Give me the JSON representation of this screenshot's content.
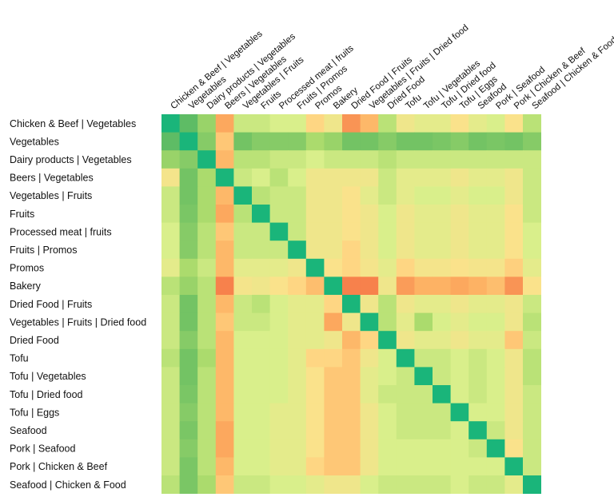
{
  "chart_data": {
    "type": "heatmap",
    "title": "",
    "xlabel": "",
    "ylabel": "",
    "categories": [
      "Chicken & Beef | Vegetables",
      "Vegetables",
      "Dairy products | Vegetables",
      "Beers | Vegetables",
      "Vegetables | Fruits",
      "Fruits",
      "Processed meat | fruits",
      "Fruits | Promos",
      "Promos",
      "Bakery",
      "Dried Food | Fruits",
      "Vegetables | Fruits | Dried food",
      "Dried Food",
      "Tofu",
      "Tofu | Vegetables",
      "Tofu | Dried food",
      "Tofu | Eggs",
      "Seafood",
      "Pork | Seafood",
      "Pork | Chicken & Beef",
      "Seafood | Chicken & Food"
    ],
    "legend": "none",
    "grid": false,
    "value_range": [
      0,
      1
    ],
    "colorscale": [
      "#f46d43",
      "#fdae61",
      "#fee08b",
      "#d9ef8b",
      "#a6d96a",
      "#66bd63",
      "#1ab57a"
    ],
    "values": [
      [
        1.0,
        0.85,
        0.7,
        0.15,
        0.55,
        0.55,
        0.5,
        0.5,
        0.3,
        0.4,
        0.1,
        0.2,
        0.6,
        0.4,
        0.45,
        0.45,
        0.35,
        0.45,
        0.5,
        0.35,
        0.6
      ],
      [
        0.85,
        1.0,
        0.75,
        0.25,
        0.8,
        0.75,
        0.75,
        0.75,
        0.65,
        0.7,
        0.8,
        0.8,
        0.75,
        0.8,
        0.8,
        0.78,
        0.75,
        0.8,
        0.78,
        0.8,
        0.75
      ],
      [
        0.7,
        0.75,
        1.0,
        0.2,
        0.6,
        0.6,
        0.55,
        0.55,
        0.5,
        0.55,
        0.55,
        0.55,
        0.6,
        0.55,
        0.55,
        0.55,
        0.55,
        0.55,
        0.55,
        0.55,
        0.55
      ],
      [
        0.38,
        0.8,
        0.65,
        1.0,
        0.55,
        0.5,
        0.6,
        0.5,
        0.4,
        0.4,
        0.4,
        0.4,
        0.55,
        0.45,
        0.45,
        0.45,
        0.4,
        0.45,
        0.45,
        0.4,
        0.55
      ],
      [
        0.55,
        0.8,
        0.65,
        0.2,
        1.0,
        0.6,
        0.55,
        0.55,
        0.4,
        0.4,
        0.35,
        0.45,
        0.55,
        0.45,
        0.5,
        0.5,
        0.45,
        0.5,
        0.5,
        0.4,
        0.55
      ],
      [
        0.55,
        0.78,
        0.65,
        0.15,
        0.6,
        1.0,
        0.55,
        0.55,
        0.4,
        0.4,
        0.35,
        0.4,
        0.5,
        0.4,
        0.45,
        0.45,
        0.4,
        0.45,
        0.45,
        0.35,
        0.55
      ],
      [
        0.5,
        0.75,
        0.6,
        0.25,
        0.55,
        0.55,
        1.0,
        0.55,
        0.4,
        0.4,
        0.35,
        0.4,
        0.5,
        0.4,
        0.45,
        0.45,
        0.4,
        0.45,
        0.45,
        0.35,
        0.5
      ],
      [
        0.5,
        0.75,
        0.6,
        0.2,
        0.55,
        0.55,
        0.55,
        1.0,
        0.4,
        0.4,
        0.3,
        0.4,
        0.5,
        0.4,
        0.45,
        0.45,
        0.4,
        0.45,
        0.45,
        0.35,
        0.5
      ],
      [
        0.45,
        0.65,
        0.55,
        0.2,
        0.45,
        0.45,
        0.45,
        0.4,
        1.0,
        0.35,
        0.3,
        0.38,
        0.45,
        0.3,
        0.38,
        0.38,
        0.35,
        0.38,
        0.38,
        0.28,
        0.45
      ],
      [
        0.6,
        0.7,
        0.6,
        0.05,
        0.38,
        0.4,
        0.35,
        0.3,
        0.22,
        1.0,
        0.05,
        0.05,
        0.4,
        0.12,
        0.18,
        0.18,
        0.15,
        0.18,
        0.22,
        0.1,
        0.35
      ],
      [
        0.55,
        0.8,
        0.6,
        0.2,
        0.55,
        0.6,
        0.5,
        0.45,
        0.45,
        0.3,
        1.0,
        0.4,
        0.6,
        0.4,
        0.45,
        0.45,
        0.4,
        0.45,
        0.45,
        0.4,
        0.55
      ],
      [
        0.55,
        0.8,
        0.6,
        0.25,
        0.55,
        0.55,
        0.5,
        0.45,
        0.45,
        0.15,
        0.4,
        1.0,
        0.6,
        0.45,
        0.65,
        0.5,
        0.45,
        0.5,
        0.5,
        0.4,
        0.6
      ],
      [
        0.55,
        0.75,
        0.6,
        0.2,
        0.5,
        0.5,
        0.5,
        0.45,
        0.45,
        0.4,
        0.2,
        0.3,
        1.0,
        0.4,
        0.45,
        0.45,
        0.4,
        0.45,
        0.45,
        0.25,
        0.55
      ],
      [
        0.6,
        0.8,
        0.65,
        0.2,
        0.5,
        0.5,
        0.5,
        0.45,
        0.3,
        0.3,
        0.25,
        0.4,
        0.5,
        1.0,
        0.55,
        0.55,
        0.5,
        0.55,
        0.5,
        0.4,
        0.6
      ],
      [
        0.55,
        0.8,
        0.6,
        0.2,
        0.5,
        0.5,
        0.5,
        0.45,
        0.35,
        0.25,
        0.25,
        0.45,
        0.5,
        0.55,
        1.0,
        0.55,
        0.5,
        0.55,
        0.5,
        0.4,
        0.6
      ],
      [
        0.55,
        0.78,
        0.6,
        0.2,
        0.5,
        0.5,
        0.5,
        0.45,
        0.35,
        0.25,
        0.25,
        0.45,
        0.55,
        0.55,
        0.55,
        1.0,
        0.5,
        0.55,
        0.5,
        0.4,
        0.55
      ],
      [
        0.55,
        0.75,
        0.6,
        0.2,
        0.5,
        0.5,
        0.45,
        0.45,
        0.35,
        0.25,
        0.25,
        0.4,
        0.5,
        0.55,
        0.55,
        0.55,
        1.0,
        0.5,
        0.5,
        0.4,
        0.55
      ],
      [
        0.55,
        0.78,
        0.6,
        0.15,
        0.5,
        0.5,
        0.45,
        0.45,
        0.35,
        0.25,
        0.25,
        0.4,
        0.5,
        0.55,
        0.55,
        0.55,
        0.5,
        1.0,
        0.55,
        0.4,
        0.55
      ],
      [
        0.55,
        0.75,
        0.6,
        0.15,
        0.5,
        0.5,
        0.45,
        0.45,
        0.35,
        0.25,
        0.25,
        0.4,
        0.5,
        0.5,
        0.5,
        0.5,
        0.5,
        0.55,
        1.0,
        0.35,
        0.55
      ],
      [
        0.55,
        0.78,
        0.6,
        0.2,
        0.5,
        0.5,
        0.45,
        0.45,
        0.3,
        0.25,
        0.25,
        0.4,
        0.5,
        0.5,
        0.5,
        0.5,
        0.5,
        0.5,
        0.5,
        1.0,
        0.55
      ],
      [
        0.6,
        0.78,
        0.65,
        0.25,
        0.55,
        0.55,
        0.5,
        0.5,
        0.45,
        0.4,
        0.4,
        0.5,
        0.55,
        0.55,
        0.55,
        0.55,
        0.5,
        0.55,
        0.55,
        0.45,
        1.0
      ]
    ]
  }
}
